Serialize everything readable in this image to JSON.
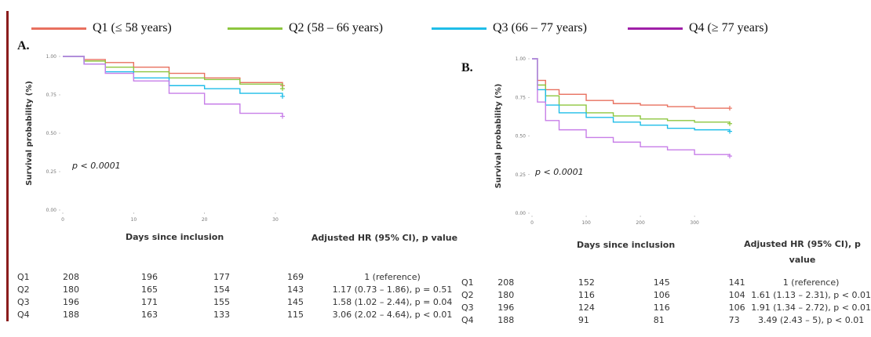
{
  "legend": [
    {
      "label": "Q1 (≤ 58 years)",
      "color": "#e8705f"
    },
    {
      "label": "Q2 (58 – 66 years)",
      "color": "#8dc63f"
    },
    {
      "label": "Q3 (66 – 77 years)",
      "color": "#1fbde8"
    },
    {
      "label": "Q4 (≥ 77 years)",
      "color": "#a020a8"
    }
  ],
  "chart_data": [
    {
      "type": "line",
      "panel": "A.",
      "xlabel": "Days since inclusion",
      "ylabel": "Survival probability (%)",
      "annotation": "p < 0.0001",
      "xlim": [
        0,
        31
      ],
      "ylim": [
        0,
        1
      ],
      "xticks": [
        "0",
        "10",
        "20",
        "30"
      ],
      "yticks": [
        "0.00",
        "0.25",
        "0.50",
        "0.75",
        "1.00"
      ],
      "series": [
        {
          "name": "Q1 (≤ 58 years)",
          "color": "#e8705f",
          "x": [
            0,
            3,
            6,
            10,
            15,
            20,
            25,
            31
          ],
          "y": [
            1.0,
            0.98,
            0.96,
            0.93,
            0.89,
            0.86,
            0.83,
            0.81
          ]
        },
        {
          "name": "Q2 (58 – 66 years)",
          "color": "#8dc63f",
          "x": [
            0,
            3,
            6,
            10,
            15,
            20,
            25,
            31
          ],
          "y": [
            1.0,
            0.97,
            0.93,
            0.9,
            0.86,
            0.85,
            0.82,
            0.79
          ]
        },
        {
          "name": "Q3 (66 – 77 years)",
          "color": "#1fbde8",
          "x": [
            0,
            3,
            6,
            10,
            15,
            20,
            25,
            31
          ],
          "y": [
            1.0,
            0.95,
            0.9,
            0.86,
            0.81,
            0.79,
            0.76,
            0.74
          ]
        },
        {
          "name": "Q4 (≥ 77 years)",
          "color": "#c77ee8",
          "x": [
            0,
            3,
            6,
            10,
            15,
            20,
            25,
            31
          ],
          "y": [
            1.0,
            0.95,
            0.89,
            0.84,
            0.76,
            0.69,
            0.63,
            0.61
          ]
        }
      ]
    },
    {
      "type": "line",
      "panel": "B.",
      "xlabel": "Days since inclusion",
      "ylabel": "Survival probability (%)",
      "annotation": "p < 0.0001",
      "xlim": [
        0,
        365
      ],
      "ylim": [
        0,
        1
      ],
      "xticks": [
        "0",
        "100",
        "200",
        "300"
      ],
      "yticks": [
        "0.00",
        "0.25",
        "0.50",
        "0.75",
        "1.00"
      ],
      "series": [
        {
          "name": "Q1 (≤ 58 years)",
          "color": "#e8705f",
          "x": [
            0,
            10,
            25,
            50,
            100,
            150,
            200,
            250,
            300,
            365
          ],
          "y": [
            1.0,
            0.86,
            0.8,
            0.77,
            0.73,
            0.71,
            0.7,
            0.69,
            0.68,
            0.68
          ]
        },
        {
          "name": "Q2 (58 – 66 years)",
          "color": "#8dc63f",
          "x": [
            0,
            10,
            25,
            50,
            100,
            150,
            200,
            250,
            300,
            365
          ],
          "y": [
            1.0,
            0.83,
            0.76,
            0.7,
            0.65,
            0.63,
            0.61,
            0.6,
            0.59,
            0.58
          ]
        },
        {
          "name": "Q3 (66 – 77 years)",
          "color": "#1fbde8",
          "x": [
            0,
            10,
            25,
            50,
            100,
            150,
            200,
            250,
            300,
            365
          ],
          "y": [
            1.0,
            0.8,
            0.7,
            0.65,
            0.62,
            0.59,
            0.57,
            0.55,
            0.54,
            0.53
          ]
        },
        {
          "name": "Q4 (≥ 77 years)",
          "color": "#c77ee8",
          "x": [
            0,
            10,
            25,
            50,
            100,
            150,
            200,
            250,
            300,
            365
          ],
          "y": [
            1.0,
            0.72,
            0.6,
            0.54,
            0.49,
            0.46,
            0.43,
            0.41,
            0.38,
            0.37
          ]
        }
      ]
    }
  ],
  "risk_tables": [
    {
      "header": "Adjusted HR (95% CI), p value",
      "rows": [
        {
          "group": "Q1",
          "n": [
            "208",
            "196",
            "177",
            "169"
          ],
          "hr": "1 (reference)"
        },
        {
          "group": "Q2",
          "n": [
            "180",
            "165",
            "154",
            "143"
          ],
          "hr": "1.17 (0.73 – 1.86), p = 0.51"
        },
        {
          "group": "Q3",
          "n": [
            "196",
            "171",
            "155",
            "145"
          ],
          "hr": "1.58 (1.02 – 2.44), p = 0.04"
        },
        {
          "group": "Q4",
          "n": [
            "188",
            "163",
            "133",
            "115"
          ],
          "hr": "3.06 (2.02 – 4.64), p < 0.01"
        }
      ]
    },
    {
      "header": "Adjusted HR (95% CI), p value",
      "rows": [
        {
          "group": "Q1",
          "n": [
            "208",
            "152",
            "145",
            "141"
          ],
          "hr": "1 (reference)"
        },
        {
          "group": "Q2",
          "n": [
            "180",
            "116",
            "106",
            "104"
          ],
          "hr": "1.61 (1.13 – 2.31), p < 0.01"
        },
        {
          "group": "Q3",
          "n": [
            "196",
            "124",
            "116",
            "106"
          ],
          "hr": "1.91 (1.34 – 2.72), p < 0.01"
        },
        {
          "group": "Q4",
          "n": [
            "188",
            "91",
            "81",
            "73"
          ],
          "hr": "3.49 (2.43 – 5), p < 0.01"
        }
      ]
    }
  ]
}
